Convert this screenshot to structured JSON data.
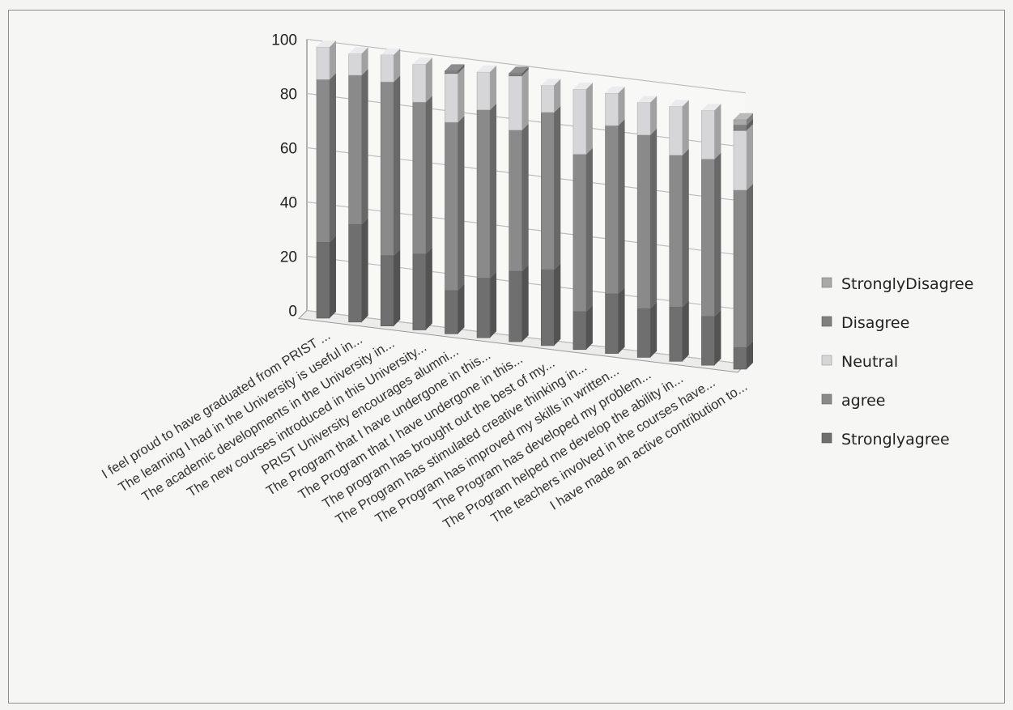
{
  "chart_data": {
    "type": "bar",
    "stacked": true,
    "three_d": true,
    "title": "",
    "xlabel": "",
    "ylabel": "",
    "ylim": [
      0,
      100
    ],
    "yticks": [
      0,
      20,
      40,
      60,
      80,
      100
    ],
    "grid": true,
    "legend_position": "right",
    "categories": [
      "I feel proud to have graduated from PRIST ...",
      "The learning I had in the University is useful in...",
      "The academic developments in the University in...",
      "The new courses introduced in this University...",
      "PRIST University encourages alumni...",
      "The Program that I have undergone in this...",
      "The Program that I have undergone in this...",
      "The program has brought out the best of my...",
      "The Program has stimulated creative thinking in...",
      "The Program has improved my skills in written...",
      "The Program has developed my problem...",
      "The Program helped me develop the ability in...",
      "The teachers involved in the courses have...",
      "I have made an active contribution to..."
    ],
    "series": [
      {
        "name": "Stronglyagree",
        "color": "#6f6f6f",
        "values": [
          28,
          36,
          26,
          28,
          16,
          22,
          26,
          28,
          14,
          22,
          18,
          20,
          18,
          8
        ]
      },
      {
        "name": "agree",
        "color": "#8a8a8a",
        "values": [
          60,
          55,
          64,
          56,
          62,
          62,
          52,
          58,
          58,
          62,
          64,
          56,
          58,
          58
        ]
      },
      {
        "name": "Neutral",
        "color": "#d6d6d8",
        "values": [
          12,
          8,
          10,
          14,
          18,
          14,
          20,
          10,
          24,
          12,
          12,
          18,
          18,
          22
        ]
      },
      {
        "name": "Disagree",
        "color": "#808080",
        "values": [
          0,
          0,
          0,
          0,
          1,
          0,
          1,
          0,
          0,
          0,
          0,
          0,
          0,
          2
        ]
      },
      {
        "name": "StronglyDisagree",
        "color": "#a9a9a9",
        "values": [
          0,
          0,
          0,
          0,
          0,
          0,
          0,
          0,
          0,
          0,
          0,
          0,
          0,
          2
        ]
      }
    ],
    "legend_order": [
      "StronglyDisagree",
      "Disagree",
      "Neutral",
      "agree",
      "Stronglyagree"
    ]
  }
}
